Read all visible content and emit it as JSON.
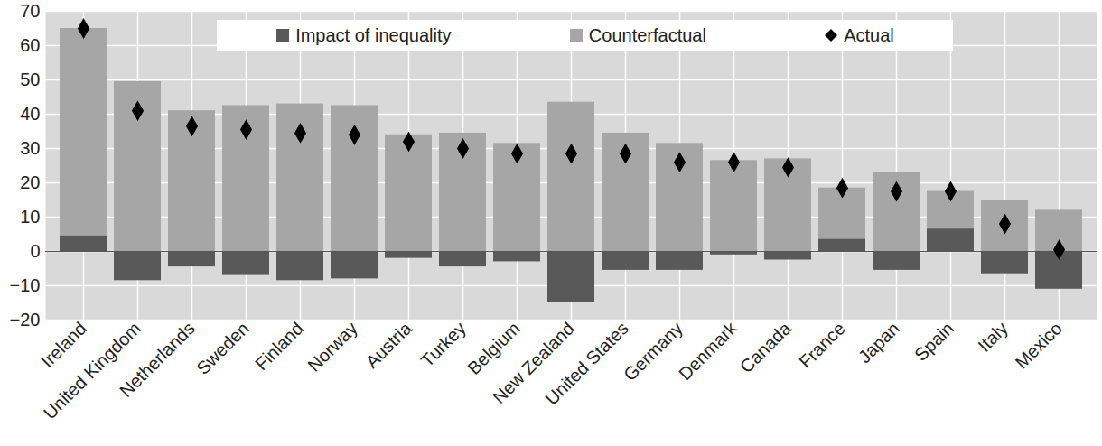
{
  "chart_data": {
    "type": "bar",
    "categories": [
      "Ireland",
      "United Kingdom",
      "Netherlands",
      "Sweden",
      "Finland",
      "Norway",
      "Austria",
      "Turkey",
      "Belgium",
      "New Zealand",
      "United States",
      "Germany",
      "Denmark",
      "Canada",
      "France",
      "Japan",
      "Spain",
      "Italy",
      "Mexico"
    ],
    "series": [
      {
        "name": "Impact of inequality",
        "type": "bar",
        "color": "#595959",
        "values": [
          4.5,
          -8.5,
          -4.5,
          -7,
          -8.5,
          -8,
          -2,
          -4.5,
          -3,
          -15,
          -5.5,
          -5.5,
          -1,
          -2.5,
          3.5,
          -5.5,
          6.5,
          -6.5,
          -11
        ]
      },
      {
        "name": "Counterfactual",
        "type": "bar",
        "color": "#a6a6a6",
        "values": [
          65,
          49.5,
          41,
          42.5,
          43,
          42.5,
          34,
          34.5,
          31.5,
          43.5,
          34.5,
          31.5,
          26.5,
          27,
          18.5,
          23,
          17.5,
          15,
          12
        ]
      },
      {
        "name": "Actual",
        "type": "scatter",
        "marker": "diamond",
        "color": "#000000",
        "values": [
          65,
          41,
          36.5,
          35.5,
          34.5,
          34,
          32,
          30,
          28.5,
          28.5,
          28.5,
          26,
          26,
          24.5,
          18.5,
          17.5,
          17.5,
          8,
          0.5
        ]
      }
    ],
    "ylim": [
      -20,
      70
    ],
    "yticks": [
      -20,
      -10,
      0,
      10,
      20,
      30,
      40,
      50,
      60,
      70
    ],
    "grid": true,
    "legend": "top"
  }
}
